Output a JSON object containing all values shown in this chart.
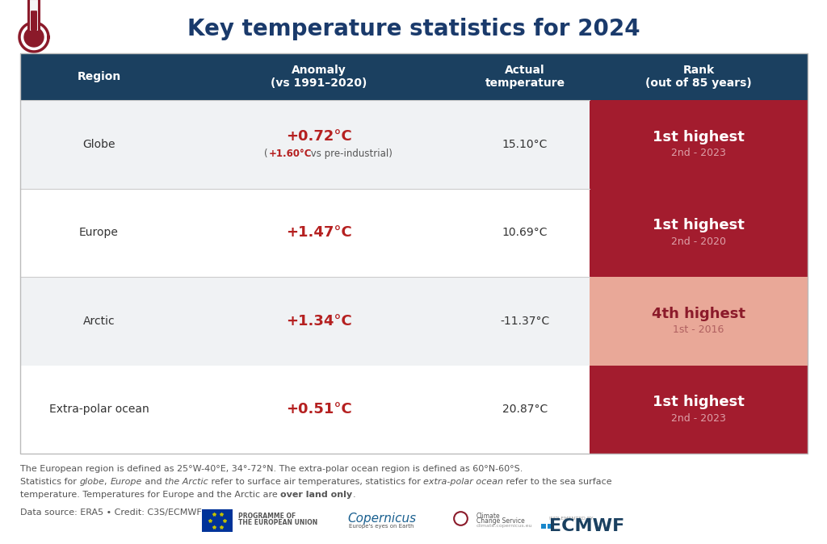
{
  "title": "Key temperature statistics for 2024",
  "title_color": "#1a3a6b",
  "title_fontsize": 20,
  "background_color": "#ffffff",
  "header_bg_color": "#1b4060",
  "header_text_color": "#ffffff",
  "header_labels": [
    "Region",
    "Anomaly\n(vs 1991–2020)",
    "Actual\ntemperature",
    "Rank\n(out of 85 years)"
  ],
  "rows": [
    {
      "region": "Globe",
      "anomaly_main": "+0.72°C",
      "anomaly_sub_colored": "+1.60°C",
      "anomaly_sub_plain": " vs pre-industrial)",
      "anomaly_sub_prefix": "(",
      "actual": "15.10°C",
      "rank_main": "1st highest",
      "rank_sub": "2nd - 2023",
      "rank_color": "#a31c2e",
      "rank_text_color": "#ffffff",
      "rank_sub_color": "#dda0a8",
      "row_bg": "#f0f2f4"
    },
    {
      "region": "Europe",
      "anomaly_main": "+1.47°C",
      "anomaly_sub_colored": "",
      "anomaly_sub_plain": "",
      "anomaly_sub_prefix": "",
      "actual": "10.69°C",
      "rank_main": "1st highest",
      "rank_sub": "2nd - 2020",
      "rank_color": "#a31c2e",
      "rank_text_color": "#ffffff",
      "rank_sub_color": "#dda0a8",
      "row_bg": "#ffffff"
    },
    {
      "region": "Arctic",
      "anomaly_main": "+1.34°C",
      "anomaly_sub_colored": "",
      "anomaly_sub_plain": "",
      "anomaly_sub_prefix": "",
      "actual": "-11.37°C",
      "rank_main": "4th highest",
      "rank_sub": "1st - 2016",
      "rank_color": "#e9a898",
      "rank_text_color": "#8b1a2a",
      "rank_sub_color": "#b06060",
      "row_bg": "#f0f2f4"
    },
    {
      "region": "Extra-polar ocean",
      "anomaly_main": "+0.51°C",
      "anomaly_sub_colored": "",
      "anomaly_sub_plain": "",
      "anomaly_sub_prefix": "",
      "actual": "20.87°C",
      "rank_main": "1st highest",
      "rank_sub": "2nd - 2023",
      "rank_color": "#a31c2e",
      "rank_text_color": "#ffffff",
      "rank_sub_color": "#dda0a8",
      "row_bg": "#ffffff"
    }
  ],
  "anomaly_color": "#b52020",
  "divider_color": "#cccccc",
  "footnote_color": "#555555",
  "footnote_fontsize": 8.0
}
